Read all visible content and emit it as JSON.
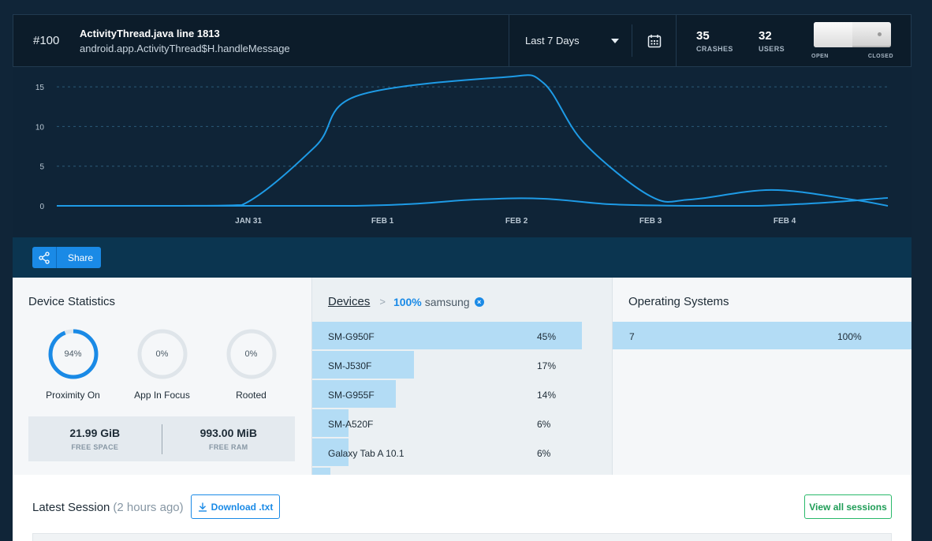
{
  "header": {
    "issue_number": "#100",
    "file_title": "ActivityThread.java line 1813",
    "method": "android.app.ActivityThread$H.handleMessage",
    "date_range": "Last 7 Days",
    "crashes_value": "35",
    "crashes_label": "CRASHES",
    "users_value": "32",
    "users_label": "USERS",
    "toggle_open": "OPEN",
    "toggle_closed": "CLOSED"
  },
  "chart_data": {
    "type": "line",
    "title": "",
    "xlabel": "",
    "ylabel": "",
    "ylim": [
      0,
      16.5
    ],
    "y_ticks": [
      "0",
      "5",
      "10",
      "15"
    ],
    "x_tick_labels": [
      "JAN 31",
      "FEB 1",
      "FEB 2",
      "FEB 3",
      "FEB 4"
    ],
    "x_tick_positions": [
      0.5,
      1.5,
      2.5,
      3.5,
      4.5
    ],
    "xlim": [
      -0.93,
      5.27
    ],
    "series": [
      {
        "name": "crashes",
        "color": "#1e9be6",
        "x": [
          -0.93,
          0.0,
          0.45,
          1.0,
          1.3,
          2.4,
          2.7,
          3.0,
          3.5,
          3.8,
          4.4,
          5.0,
          5.27
        ],
        "values": [
          0,
          0,
          0.1,
          7.5,
          13.8,
          16.2,
          15.5,
          8.0,
          1.2,
          0.8,
          2.0,
          0.8,
          0
        ]
      },
      {
        "name": "users",
        "color": "#1e9be6",
        "x": [
          -0.93,
          1.3,
          2.2,
          2.7,
          3.2,
          3.8,
          4.3,
          4.8,
          5.27
        ],
        "values": [
          0,
          0,
          0.8,
          0.9,
          0.2,
          0,
          0,
          0.4,
          1.0
        ]
      }
    ]
  },
  "share": {
    "label": "Share"
  },
  "device_stats": {
    "title": "Device Statistics",
    "gauges": [
      {
        "label": "Proximity On",
        "value_text": "94%",
        "value": 0.94
      },
      {
        "label": "App In Focus",
        "value_text": "0%",
        "value": 0
      },
      {
        "label": "Rooted",
        "value_text": "0%",
        "value": 0
      }
    ],
    "free_space_value": "21.99 GiB",
    "free_space_label": "FREE SPACE",
    "free_ram_value": "993.00 MiB",
    "free_ram_label": "FREE RAM"
  },
  "devices": {
    "crumb_link": "Devices",
    "crumb_sep": ">",
    "filter_pct": "100%",
    "filter_value": "samsung",
    "rows": [
      {
        "name": "SM-G950F",
        "pct": "45%",
        "share": 0.45
      },
      {
        "name": "SM-J530F",
        "pct": "17%",
        "share": 0.17
      },
      {
        "name": "SM-G955F",
        "pct": "14%",
        "share": 0.14
      },
      {
        "name": "SM-A520F",
        "pct": "6%",
        "share": 0.06
      },
      {
        "name": "Galaxy Tab A 10.1",
        "pct": "6%",
        "share": 0.06
      }
    ]
  },
  "os": {
    "title": "Operating Systems",
    "rows": [
      {
        "name": "7",
        "pct": "100%",
        "share": 1.0
      }
    ]
  },
  "latest": {
    "title": "Latest Session",
    "ago": "(2 hours ago)",
    "download_label": "Download .txt",
    "view_all_label": "View all sessions"
  }
}
